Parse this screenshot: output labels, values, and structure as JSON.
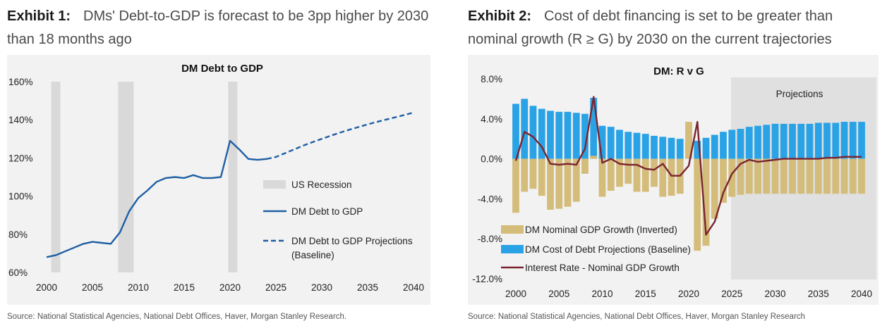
{
  "exhibit1": {
    "label": "Exhibit 1:",
    "title": "DMs' Debt-to-GDP is forecast to be 3pp higher by 2030 than 18 months ago",
    "source": "Source: National Statistical Agencies, National Debt Offices, Haver, Morgan Stanley Research."
  },
  "exhibit2": {
    "label": "Exhibit 2:",
    "title": "Cost of debt financing is set to be greater than nominal growth (R ≥ G) by 2030 on the current trajectories",
    "source": "Source: National Statistical Agencies, National Debt Offices, Haver, Morgan Stanley Research"
  },
  "colors": {
    "debt_line": "#1f5fa4",
    "recession": "#d9d9d9",
    "gdp_bar": "#d4bc7a",
    "cost_bar": "#2aa3e6",
    "r_minus_g_line": "#7b2430",
    "projection_shade": "#e0e0e0"
  },
  "chart_data": [
    {
      "type": "line",
      "title": "DM Debt to GDP",
      "xlim": [
        2000,
        2040
      ],
      "ylim": [
        60,
        160
      ],
      "x_ticks": [
        "2000",
        "2005",
        "2010",
        "2015",
        "2020",
        "2025",
        "2030",
        "2035",
        "2040"
      ],
      "y_ticks": [
        "60%",
        "80%",
        "100%",
        "120%",
        "140%",
        "160%"
      ],
      "recessions": [
        [
          2000.5,
          2001.5
        ],
        [
          2007.8,
          2009.5
        ],
        [
          2019.8,
          2020.8
        ]
      ],
      "series": [
        {
          "name": "DM Debt to GDP",
          "style": "solid",
          "x": [
            2000,
            2001,
            2002,
            2003,
            2004,
            2005,
            2006,
            2007,
            2008,
            2009,
            2010,
            2011,
            2012,
            2013,
            2014,
            2015,
            2016,
            2017,
            2018,
            2019,
            2020,
            2021,
            2022,
            2023,
            2024
          ],
          "values": [
            68,
            69,
            71,
            73,
            75,
            76,
            75.5,
            75,
            81,
            92,
            99,
            103,
            107.5,
            109.5,
            110,
            109.5,
            111,
            109.5,
            109.5,
            110,
            129,
            124.5,
            119.5,
            119,
            119.5
          ]
        },
        {
          "name": "DM Debt to GDP Projections (Baseline)",
          "style": "dashed",
          "x": [
            2024,
            2025,
            2026,
            2027,
            2028,
            2029,
            2030,
            2031,
            2032,
            2033,
            2034,
            2035,
            2036,
            2037,
            2038,
            2039,
            2040
          ],
          "values": [
            119.5,
            120.5,
            122.5,
            124.5,
            126.5,
            128.3,
            130,
            131.7,
            133.3,
            134.8,
            136.2,
            137.6,
            138.9,
            140.1,
            141.3,
            142.5,
            143.8
          ]
        }
      ],
      "legend": [
        "US Recession",
        "DM Debt to GDP",
        "DM Debt to GDP Projections\n(Baseline)"
      ],
      "legend_lines": [
        "US Recession",
        "DM Debt to GDP",
        "DM Debt to GDP Projections",
        "(Baseline)"
      ]
    },
    {
      "type": "bar",
      "title": "DM: R v G",
      "xlim": [
        2000,
        2040
      ],
      "ylim": [
        -12,
        8
      ],
      "x_ticks": [
        "2000",
        "2005",
        "2010",
        "2015",
        "2020",
        "2025",
        "2030",
        "2035",
        "2040"
      ],
      "y_ticks": [
        "8.0%",
        "4.0%",
        "0.0%",
        "-4.0%",
        "-8.0%",
        "-12.0%"
      ],
      "annotation": "Projections",
      "projection_start": 2024.9,
      "x": [
        2000,
        2001,
        2002,
        2003,
        2004,
        2005,
        2006,
        2007,
        2008,
        2009,
        2010,
        2011,
        2012,
        2013,
        2014,
        2015,
        2016,
        2017,
        2018,
        2019,
        2020,
        2021,
        2022,
        2023,
        2024,
        2025,
        2026,
        2027,
        2028,
        2029,
        2030,
        2031,
        2032,
        2033,
        2034,
        2035,
        2036,
        2037,
        2038,
        2039,
        2040
      ],
      "series": [
        {
          "name": "DM Nominal GDP Growth (Inverted)",
          "values": [
            -5.4,
            -3.3,
            -3.0,
            -3.7,
            -5.1,
            -5.0,
            -4.8,
            -4.3,
            -1.5,
            0.3,
            -3.8,
            -3.2,
            -2.8,
            -2.5,
            -3.3,
            -3.3,
            -2.8,
            -3.8,
            -3.7,
            -3.5,
            3.7,
            -9.2,
            -8.7,
            -6.0,
            -4.4,
            -3.8,
            -3.6,
            -3.5,
            -3.5,
            -3.5,
            -3.5,
            -3.5,
            -3.5,
            -3.5,
            -3.5,
            -3.5,
            -3.5,
            -3.5,
            -3.5,
            -3.5,
            -3.5
          ]
        },
        {
          "name": "DM Cost of Debt Projections (Baseline)",
          "values": [
            5.5,
            6.0,
            5.3,
            5.0,
            4.8,
            4.7,
            4.7,
            4.6,
            4.5,
            6.1,
            3.3,
            3.2,
            2.9,
            2.7,
            2.6,
            2.5,
            2.3,
            2.2,
            2.1,
            2.0,
            1.9,
            1.8,
            2.1,
            2.4,
            2.7,
            2.9,
            3.0,
            3.2,
            3.3,
            3.4,
            3.5,
            3.5,
            3.5,
            3.5,
            3.5,
            3.6,
            3.6,
            3.6,
            3.7,
            3.7,
            3.7
          ]
        },
        {
          "name": "Interest Rate - Nominal GDP Growth",
          "values": [
            -0.2,
            2.7,
            2.2,
            1.2,
            -0.5,
            -0.6,
            -0.5,
            -0.6,
            1.0,
            6.2,
            -0.4,
            0.0,
            -0.5,
            -0.6,
            -0.6,
            -1.0,
            -1.1,
            -0.5,
            -1.7,
            -1.7,
            -0.7,
            3.7,
            -7.6,
            -6.3,
            -3.4,
            -1.5,
            -0.5,
            -0.1,
            -0.3,
            -0.2,
            -0.1,
            0.0,
            0.0,
            0.0,
            0.0,
            0.0,
            0.1,
            0.1,
            0.2,
            0.2,
            0.2
          ]
        }
      ],
      "legend": [
        "DM Nominal GDP Growth (Inverted)",
        "DM Cost of Debt Projections (Baseline)",
        "Interest Rate - Nominal GDP Growth"
      ]
    }
  ]
}
